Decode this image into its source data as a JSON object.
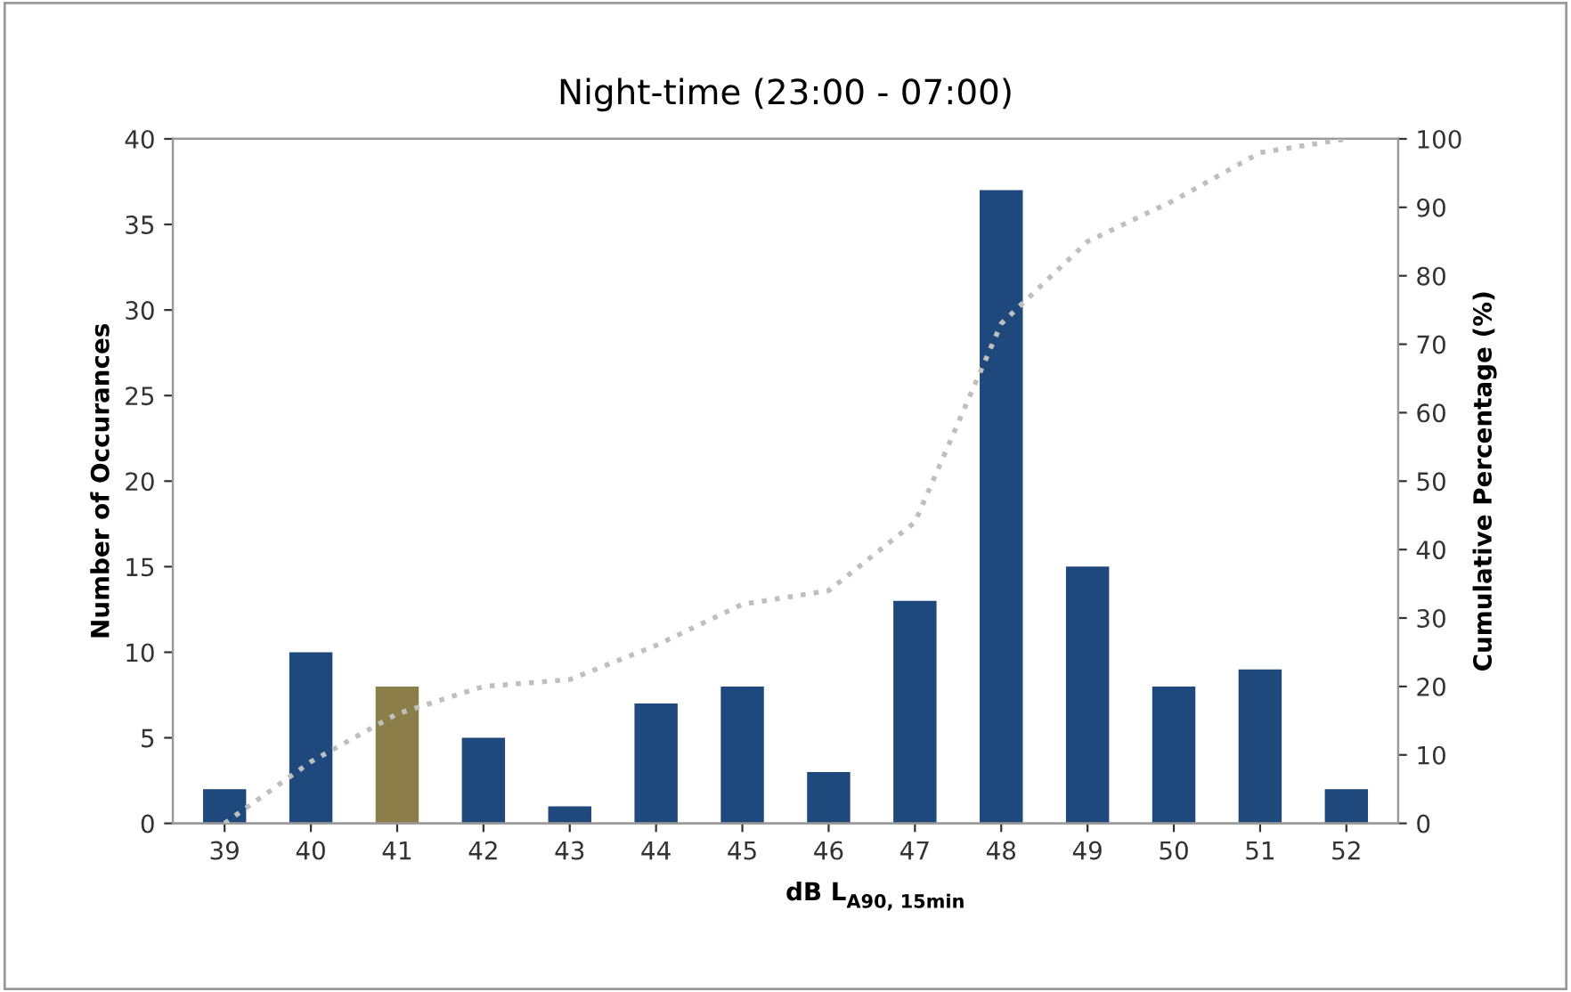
{
  "chart_data": {
    "type": "bar",
    "title": "Night-time (23:00 - 07:00)",
    "xlabel": "dB L$_{A90, 15min}$",
    "ylabel": "Number of Occurances",
    "y2label": "Cumulative Percentage (%)",
    "categories": [
      "39",
      "40",
      "41",
      "42",
      "43",
      "44",
      "45",
      "46",
      "47",
      "48",
      "49",
      "50",
      "51",
      "52"
    ],
    "series": [
      {
        "colors": [
          "#1f497d",
          "#1f497d",
          "#8c7e48",
          "#1f497d",
          "#1f497d",
          "#1f497d",
          "#1f497d",
          "#1f497d",
          "#1f497d",
          "#1f497d",
          "#1f497d",
          "#1f497d",
          "#1f497d",
          "#1f497d"
        ],
        "values": [
          2,
          10,
          8,
          5,
          1,
          7,
          8,
          3,
          13,
          37,
          15,
          8,
          9,
          2
        ]
      },
      {
        "type": "line",
        "axis": "y2",
        "color": "#bfbfbf",
        "line_style": "dotted",
        "marker": "none",
        "values": [
          0,
          9,
          16,
          20,
          21,
          26,
          32,
          34,
          44,
          73,
          85,
          91,
          98,
          100
        ]
      }
    ],
    "ylim": [
      0,
      40
    ],
    "yticks": [
      0,
      5,
      10,
      15,
      20,
      25,
      30,
      35,
      40
    ],
    "y2lim": [
      0,
      100
    ],
    "y2ticks": [
      0,
      10,
      20,
      30,
      40,
      50,
      60,
      70,
      80,
      90,
      100
    ],
    "grid": false,
    "legend": false
  }
}
